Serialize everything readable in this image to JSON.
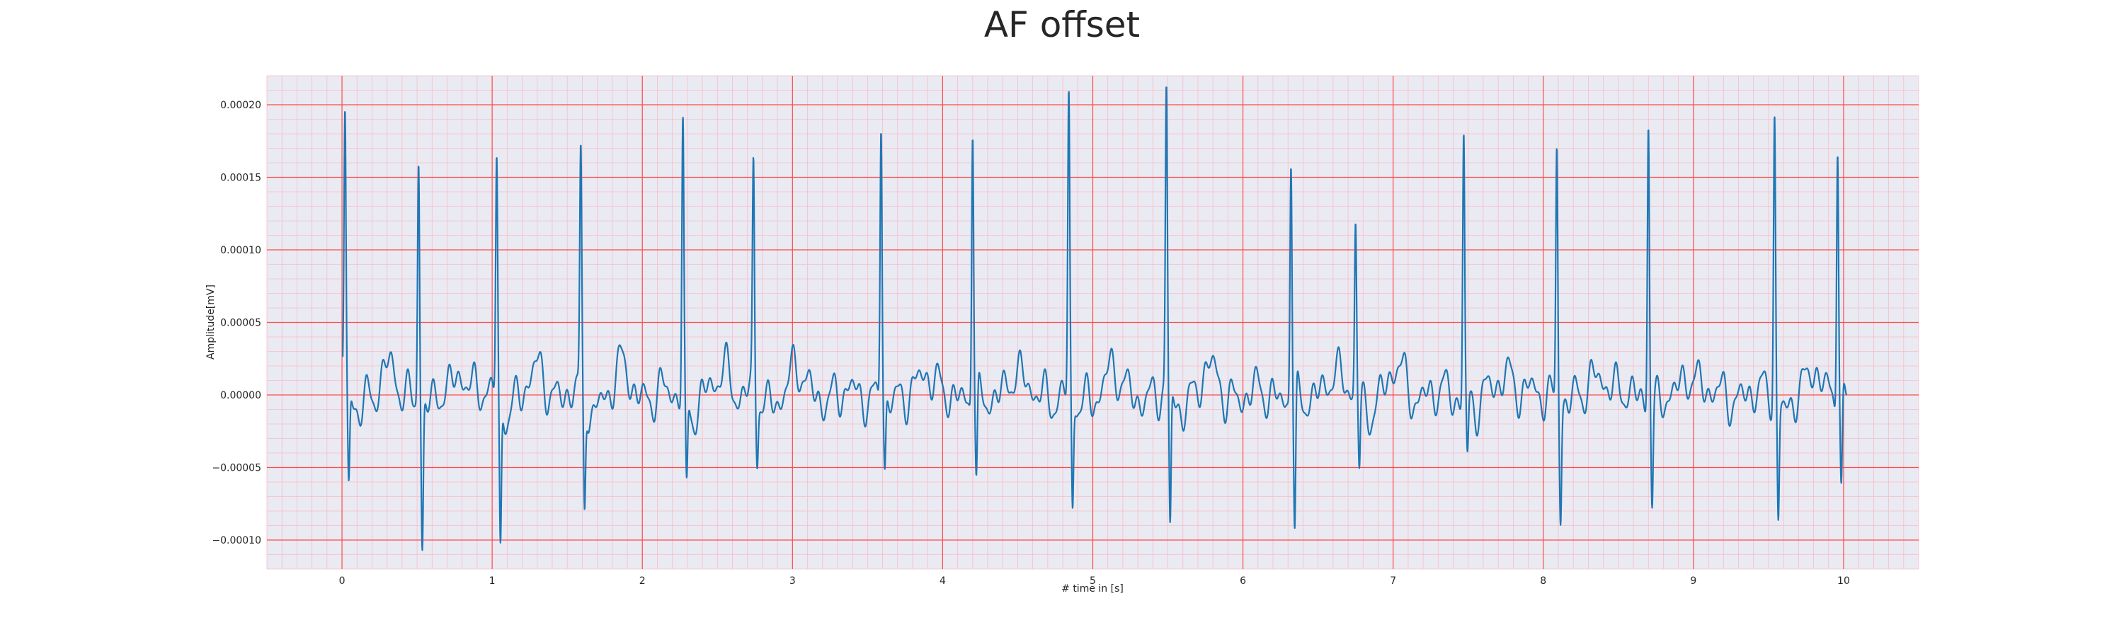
{
  "chart_data": {
    "type": "line",
    "title": "AF offset",
    "xlabel": "# time in [s]",
    "ylabel": "Amplitude[mV]",
    "xlim": [
      -0.5,
      10.5
    ],
    "ylim": [
      -0.00012,
      0.00022
    ],
    "x_ticks": [
      0,
      1,
      2,
      3,
      4,
      5,
      6,
      7,
      8,
      9,
      10
    ],
    "x_tick_labels": [
      "0",
      "1",
      "2",
      "3",
      "4",
      "5",
      "6",
      "7",
      "8",
      "9",
      "10"
    ],
    "y_ticks": [
      -0.0001,
      -5e-05,
      0,
      5e-05,
      0.0001,
      0.00015,
      0.0002
    ],
    "y_tick_labels": [
      "−0.00010",
      "−0.00005",
      "0.00000",
      "0.00005",
      "0.00010",
      "0.00015",
      "0.00020"
    ],
    "grid": true,
    "grid_major_color": "#ff4a4a",
    "grid_minor_color": "#f7bcc8",
    "background_color": "#eaeaf2",
    "series": [
      {
        "color": "#1f77b4",
        "beats": [
          {
            "t": 0.02,
            "peak": 0.00019,
            "trough": -6.6e-05
          },
          {
            "t": 0.51,
            "peak": 0.000171,
            "trough": -0.000101
          },
          {
            "t": 1.03,
            "peak": 0.000165,
            "trough": -0.000105
          },
          {
            "t": 1.59,
            "peak": 0.00016,
            "trough": -7.8e-05
          },
          {
            "t": 2.27,
            "peak": 0.000187,
            "trough": -6.5e-05
          },
          {
            "t": 2.74,
            "peak": 0.000155,
            "trough": -4e-05
          },
          {
            "t": 3.59,
            "peak": 0.000195,
            "trough": -5e-05
          },
          {
            "t": 4.2,
            "peak": 0.000194,
            "trough": -6.2e-05
          },
          {
            "t": 4.84,
            "peak": 0.000203,
            "trough": -8e-05
          },
          {
            "t": 5.49,
            "peak": 0.000207,
            "trough": -9.8e-05
          },
          {
            "t": 6.32,
            "peak": 0.00017,
            "trough": -9.8e-05
          },
          {
            "t": 6.75,
            "peak": 0.000116,
            "trough": -4.8e-05
          },
          {
            "t": 7.47,
            "peak": 0.000182,
            "trough": -4.1e-05
          },
          {
            "t": 8.09,
            "peak": 0.000177,
            "trough": -7.3e-05
          },
          {
            "t": 8.7,
            "peak": 0.000197,
            "trough": -6.8e-05
          },
          {
            "t": 9.54,
            "peak": 0.000197,
            "trough": -8e-05
          },
          {
            "t": 9.96,
            "peak": 0.000185,
            "trough": -6.7e-05
          }
        ]
      }
    ]
  }
}
